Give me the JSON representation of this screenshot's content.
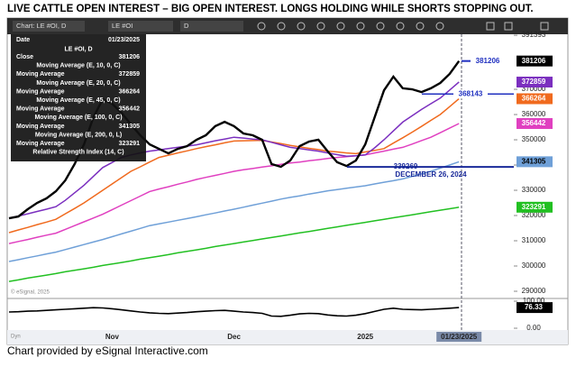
{
  "page_title": "LIVE CATTLE OPEN INTEREST –  BIG OPEN INTEREST.  LONGS HOLDING WHILE SHORTS STOPPING OUT.",
  "footer": "Chart provided by eSignal Interactive.com",
  "chart_data": {
    "type": "line",
    "toolbar": {
      "chart": "Chart: LE #OI, D",
      "symbol": "LE #OI",
      "interval": "D",
      "mode": "Dyn"
    },
    "watermark": "© eSignal, 2025",
    "legend": {
      "date_label": "Date",
      "date": "01/23/2025",
      "symbol": "LE #OI, D",
      "value_caption": "Moving Average"
    },
    "categories": [
      null,
      null,
      null,
      null,
      null,
      null,
      null,
      null,
      null,
      null,
      null,
      "Nov",
      null,
      null,
      null,
      null,
      null,
      null,
      null,
      null,
      null,
      null,
      null,
      null,
      "Dec",
      null,
      null,
      null,
      null,
      null,
      null,
      null,
      null,
      null,
      null,
      null,
      null,
      null,
      "2025",
      null,
      null,
      null,
      null,
      null,
      null,
      null,
      null,
      null,
      "01/23/2025"
    ],
    "ylim": [
      287500,
      391800
    ],
    "yticks": [
      290000,
      300000,
      310000,
      320000,
      330000,
      340000,
      350000,
      360000,
      370000,
      391393
    ],
    "series": [
      {
        "name": "Close",
        "color": "#000000",
        "values": [
          318900,
          319600,
          322500,
          325000,
          326800,
          329600,
          333900,
          340400,
          348200,
          358900,
          366100,
          364300,
          360700,
          356100,
          351800,
          348200,
          346400,
          344600,
          346400,
          347500,
          350000,
          351800,
          355400,
          357100,
          355400,
          352500,
          351800,
          350000,
          340400,
          339300,
          341800,
          347500,
          349300,
          350000,
          345400,
          341100,
          339600,
          341800,
          348200,
          358900,
          369600,
          375000,
          370400,
          370000,
          368900,
          370400,
          372500,
          376100,
          381206
        ]
      },
      {
        "name": "Moving Average (E, 10, 0, C)",
        "color": "#7b2fbf",
        "values": [
          319000,
          319800,
          320700,
          321600,
          322500,
          323500,
          326000,
          329000,
          332000,
          335500,
          339000,
          341000,
          343000,
          344000,
          344800,
          345500,
          346000,
          346500,
          347000,
          347500,
          348000,
          348800,
          349600,
          350300,
          351000,
          350700,
          350300,
          350000,
          349000,
          348000,
          347000,
          346500,
          346000,
          345500,
          344800,
          344100,
          343500,
          343700,
          344000,
          346800,
          350000,
          353500,
          357000,
          359500,
          362000,
          364300,
          366500,
          369700,
          372859
        ]
      },
      {
        "name": "Moving Average (E, 20, 0, C)",
        "color": "#f06a1e",
        "values": [
          313200,
          314300,
          315300,
          316400,
          317400,
          318500,
          320700,
          322800,
          325000,
          327500,
          330000,
          332500,
          335000,
          337500,
          339300,
          341200,
          343000,
          343900,
          344800,
          345600,
          346500,
          347300,
          348000,
          348800,
          349500,
          349600,
          349700,
          349800,
          349100,
          348500,
          347800,
          347200,
          346600,
          346100,
          345500,
          345200,
          344800,
          344500,
          345200,
          345800,
          346500,
          348700,
          350800,
          353000,
          355300,
          357700,
          360000,
          363100,
          366264
        ]
      },
      {
        "name": "Moving Average (E, 45, 0, C)",
        "color": "#e040c0",
        "values": [
          308900,
          309700,
          310500,
          311400,
          312200,
          313000,
          314500,
          316000,
          317500,
          319000,
          320500,
          322300,
          324100,
          325900,
          327700,
          329500,
          330500,
          331400,
          332400,
          333300,
          334300,
          335100,
          335900,
          336700,
          337500,
          338100,
          338600,
          339200,
          339700,
          340300,
          340800,
          341200,
          341700,
          342100,
          342600,
          343000,
          343300,
          343700,
          344000,
          344800,
          345500,
          346300,
          347000,
          348300,
          349700,
          351000,
          352800,
          354600,
          356442
        ]
      },
      {
        "name": "Moving Average (E, 100, 0, C)",
        "color": "#6fa0d8",
        "values": [
          301800,
          302500,
          303300,
          304000,
          304800,
          305500,
          306500,
          307500,
          308500,
          309500,
          310500,
          311600,
          312700,
          313800,
          314900,
          316000,
          316700,
          317400,
          318100,
          318800,
          319500,
          320300,
          321000,
          321800,
          322500,
          323300,
          324100,
          324900,
          325700,
          326500,
          327200,
          327800,
          328500,
          329100,
          329800,
          330300,
          330800,
          331300,
          331800,
          332500,
          333200,
          333800,
          334500,
          335500,
          336500,
          337500,
          338800,
          340000,
          341305
        ]
      },
      {
        "name": "Moving Average (E, 200, 0, L)",
        "color": "#22c022",
        "values": [
          293900,
          294500,
          295200,
          295800,
          296400,
          297000,
          297700,
          298300,
          298900,
          299500,
          300200,
          300800,
          301400,
          302000,
          302700,
          303300,
          303900,
          304500,
          305200,
          305800,
          306400,
          307000,
          307700,
          308300,
          308900,
          309500,
          310100,
          310700,
          311300,
          311900,
          312500,
          313100,
          313700,
          314300,
          314900,
          315500,
          316100,
          316700,
          317300,
          317900,
          318500,
          319100,
          319700,
          320300,
          320900,
          321500,
          322100,
          322700,
          323291
        ]
      }
    ],
    "annotations": [
      {
        "value": 381206,
        "color": "#2030c0"
      },
      {
        "value": 368143,
        "color": "#2030c0"
      },
      {
        "value": 339269,
        "text": "DECEMBER 26, 2024",
        "color": "#1a2a9a"
      }
    ],
    "rsi": {
      "name": "Relative Strength Index (14, C)",
      "color": "#000000",
      "ylim": [
        0,
        100
      ],
      "yticks": [
        {
          "value": 0,
          "label": "0.00"
        },
        {
          "value": 100,
          "label": "100.00"
        }
      ],
      "values": [
        60,
        61,
        63,
        64,
        66,
        68,
        70,
        72,
        74,
        76,
        75,
        72,
        68,
        64,
        60,
        57,
        55,
        54,
        56,
        58,
        61,
        63,
        65,
        66,
        63,
        60,
        58,
        55,
        45,
        44,
        48,
        53,
        55,
        54,
        49,
        46,
        45,
        48,
        54,
        62,
        70,
        74,
        70,
        69,
        68,
        70,
        72,
        74,
        76.33
      ]
    }
  }
}
